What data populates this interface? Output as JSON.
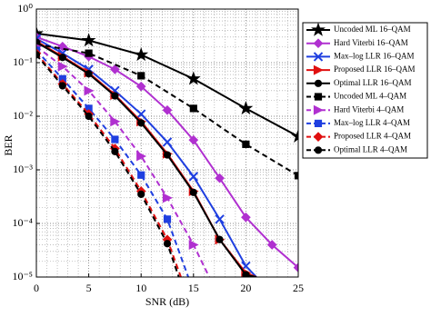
{
  "chart_data": {
    "type": "line",
    "xlabel": "SNR (dB)",
    "ylabel": "BER",
    "yscale": "log",
    "grid": true,
    "legend": "right",
    "xlim": [
      0,
      25
    ],
    "xticks": [
      0,
      5,
      10,
      15,
      20,
      25
    ],
    "ylim": [
      1e-05,
      1
    ],
    "yticks": [
      {
        "value": 1e-05,
        "label": "10⁻⁵"
      },
      {
        "value": 0.0001,
        "label": "10⁻⁴"
      },
      {
        "value": 0.001,
        "label": "10⁻³"
      },
      {
        "value": 0.01,
        "label": "10⁻²"
      },
      {
        "value": 0.1,
        "label": "10⁻¹"
      },
      {
        "value": 1,
        "label": "10⁰"
      }
    ],
    "series": [
      {
        "name": "Uncoded ML 16–QAM",
        "color": "#000000",
        "dash": "solid",
        "marker": "star",
        "x": [
          0,
          5,
          10,
          15,
          20,
          25
        ],
        "values": [
          0.35,
          0.26,
          0.14,
          0.05,
          0.014,
          0.0042
        ]
      },
      {
        "name": "Hard Viterbi 16–QAM",
        "color": "#b030d0",
        "dash": "solid",
        "marker": "diamond",
        "x": [
          0,
          2.5,
          5,
          7.5,
          10,
          12.5,
          15,
          17.5,
          20,
          22.5,
          25
        ],
        "values": [
          0.3,
          0.2,
          0.13,
          0.075,
          0.036,
          0.013,
          0.0036,
          0.0007,
          0.00013,
          4e-05,
          1.5e-05
        ]
      },
      {
        "name": "Max–log LLR 16–QAM",
        "color": "#1f3fe0",
        "dash": "solid",
        "marker": "x",
        "x": [
          0,
          2.5,
          5,
          7.5,
          10,
          12.5,
          15,
          17.5,
          20,
          21
        ],
        "values": [
          0.28,
          0.15,
          0.075,
          0.03,
          0.011,
          0.0033,
          0.00075,
          0.00012,
          1.6e-05,
          1e-05
        ]
      },
      {
        "name": "Proposed LLR 16–QAM",
        "color": "#e01010",
        "dash": "solid",
        "marker": "triangle",
        "x": [
          0,
          2.5,
          5,
          7.5,
          10,
          12.5,
          15,
          17.5,
          20,
          21
        ],
        "values": [
          0.25,
          0.13,
          0.065,
          0.025,
          0.008,
          0.002,
          0.0004,
          5e-05,
          1.2e-05,
          1e-05
        ]
      },
      {
        "name": "Optimal LLR 16–QAM",
        "color": "#000000",
        "dash": "solid",
        "marker": "circle",
        "x": [
          0,
          2.5,
          5,
          7.5,
          10,
          12.5,
          15,
          17.5,
          20,
          21
        ],
        "values": [
          0.24,
          0.125,
          0.062,
          0.024,
          0.0075,
          0.0019,
          0.00038,
          5e-05,
          1.1e-05,
          1e-05
        ]
      },
      {
        "name": "Uncoded ML 4–QAM",
        "color": "#000000",
        "dash": "dashed",
        "marker": "square",
        "x": [
          0,
          5,
          10,
          15,
          20,
          25
        ],
        "values": [
          0.22,
          0.15,
          0.057,
          0.014,
          0.003,
          0.00078
        ]
      },
      {
        "name": "Hard Viterbi 4–QAM",
        "color": "#b030d0",
        "dash": "dashed",
        "marker": "triangle",
        "x": [
          0,
          2.5,
          5,
          7.5,
          10,
          12.5,
          15,
          16.5
        ],
        "values": [
          0.2,
          0.085,
          0.03,
          0.008,
          0.0018,
          0.0003,
          4e-05,
          1e-05
        ]
      },
      {
        "name": "Max–log LLR 4–QAM",
        "color": "#1f3fe0",
        "dash": "dashed",
        "marker": "square",
        "x": [
          0,
          2.5,
          5,
          7.5,
          10,
          12.5,
          14.5
        ],
        "values": [
          0.17,
          0.05,
          0.014,
          0.0037,
          0.0008,
          0.00012,
          1e-05
        ]
      },
      {
        "name": "Proposed LLR 4–QAM",
        "color": "#e01010",
        "dash": "dashed",
        "marker": "diamond",
        "x": [
          0,
          2.5,
          5,
          7.5,
          10,
          12.5,
          13.8
        ],
        "values": [
          0.15,
          0.04,
          0.011,
          0.0025,
          0.0004,
          5e-05,
          1e-05
        ]
      },
      {
        "name": "Optimal LLR 4–QAM",
        "color": "#000000",
        "dash": "dashed",
        "marker": "circle",
        "x": [
          0,
          2.5,
          5,
          7.5,
          10,
          12.5,
          13.6
        ],
        "values": [
          0.14,
          0.037,
          0.01,
          0.0022,
          0.00035,
          4.2e-05,
          1e-05
        ]
      }
    ]
  }
}
